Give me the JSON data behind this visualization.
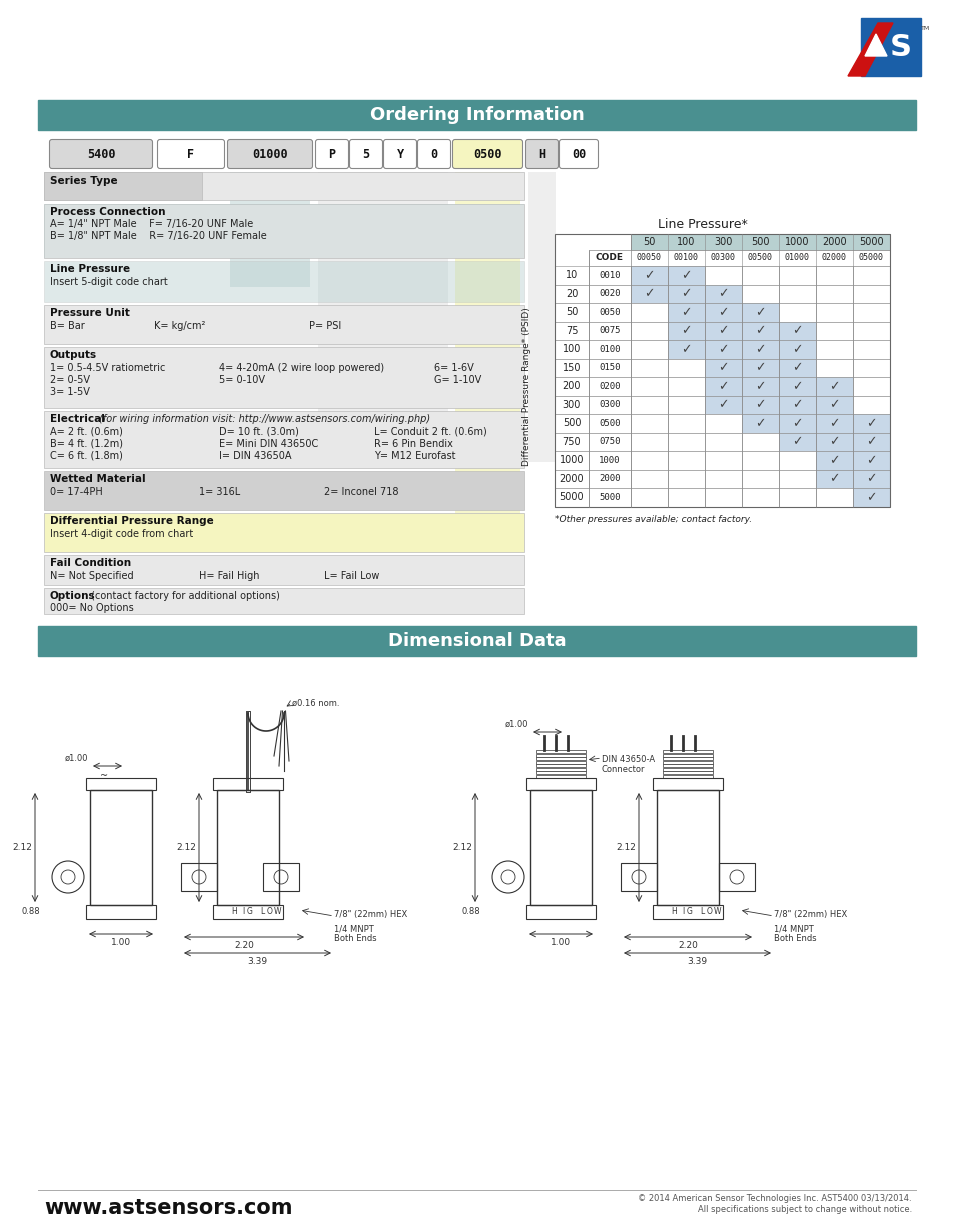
{
  "page_bg": "#ffffff",
  "header_color": "#4a9090",
  "header_text": "Ordering Information",
  "header2_text": "Dimensional Data",
  "footer_text": "www.astsensors.com",
  "footer_right": "© 2014 American Sensor Technologies Inc. AST5400 03/13/2014.\nAll specifications subject to change without notice.",
  "order_boxes": [
    {
      "label": "5400",
      "bg": "#d8d8d8",
      "border": "#999999"
    },
    {
      "label": "F",
      "bg": "#ffffff",
      "border": "#999999"
    },
    {
      "label": "01000",
      "bg": "#d8d8d8",
      "border": "#999999"
    },
    {
      "label": "P",
      "bg": "#ffffff",
      "border": "#999999"
    },
    {
      "label": "5",
      "bg": "#ffffff",
      "border": "#999999"
    },
    {
      "label": "Y",
      "bg": "#ffffff",
      "border": "#999999"
    },
    {
      "label": "0",
      "bg": "#ffffff",
      "border": "#999999"
    },
    {
      "label": "0500",
      "bg": "#f5f5c0",
      "border": "#999999"
    },
    {
      "label": "H",
      "bg": "#d8d8d8",
      "border": "#999999"
    },
    {
      "label": "00",
      "bg": "#ffffff",
      "border": "#999999"
    }
  ],
  "table_title": "Line Pressure*",
  "table_note": "*Other pressures available; contact factory.",
  "col_headers_top": [
    "50",
    "100",
    "300",
    "500",
    "1000",
    "2000",
    "5000"
  ],
  "col_headers_code": [
    "00050",
    "00100",
    "00300",
    "00500",
    "01000",
    "02000",
    "05000"
  ],
  "row_data": [
    {
      "dp": "10",
      "code": "0010",
      "checks": [
        1,
        1,
        0,
        0,
        0,
        0,
        0
      ]
    },
    {
      "dp": "20",
      "code": "0020",
      "checks": [
        1,
        1,
        1,
        0,
        0,
        0,
        0
      ]
    },
    {
      "dp": "50",
      "code": "0050",
      "checks": [
        0,
        1,
        1,
        1,
        0,
        0,
        0
      ]
    },
    {
      "dp": "75",
      "code": "0075",
      "checks": [
        0,
        1,
        1,
        1,
        1,
        0,
        0
      ]
    },
    {
      "dp": "100",
      "code": "0100",
      "checks": [
        0,
        1,
        1,
        1,
        1,
        0,
        0
      ]
    },
    {
      "dp": "150",
      "code": "0150",
      "checks": [
        0,
        0,
        1,
        1,
        1,
        0,
        0
      ]
    },
    {
      "dp": "200",
      "code": "0200",
      "checks": [
        0,
        0,
        1,
        1,
        1,
        1,
        0
      ]
    },
    {
      "dp": "300",
      "code": "0300",
      "checks": [
        0,
        0,
        1,
        1,
        1,
        1,
        0
      ]
    },
    {
      "dp": "500",
      "code": "0500",
      "checks": [
        0,
        0,
        0,
        1,
        1,
        1,
        1
      ]
    },
    {
      "dp": "750",
      "code": "0750",
      "checks": [
        0,
        0,
        0,
        0,
        1,
        1,
        1
      ]
    },
    {
      "dp": "1000",
      "code": "1000",
      "checks": [
        0,
        0,
        0,
        0,
        0,
        1,
        1
      ]
    },
    {
      "dp": "2000",
      "code": "2000",
      "checks": [
        0,
        0,
        0,
        0,
        0,
        1,
        1
      ]
    },
    {
      "dp": "5000",
      "code": "5000",
      "checks": [
        0,
        0,
        0,
        0,
        0,
        0,
        1
      ]
    }
  ],
  "teal_light": "#b8d0d0",
  "blue_light": "#c8d8e8",
  "gray_light": "#e8e8e8",
  "gray_medium": "#d0d0d0",
  "yellow_light": "#f5f5c0"
}
